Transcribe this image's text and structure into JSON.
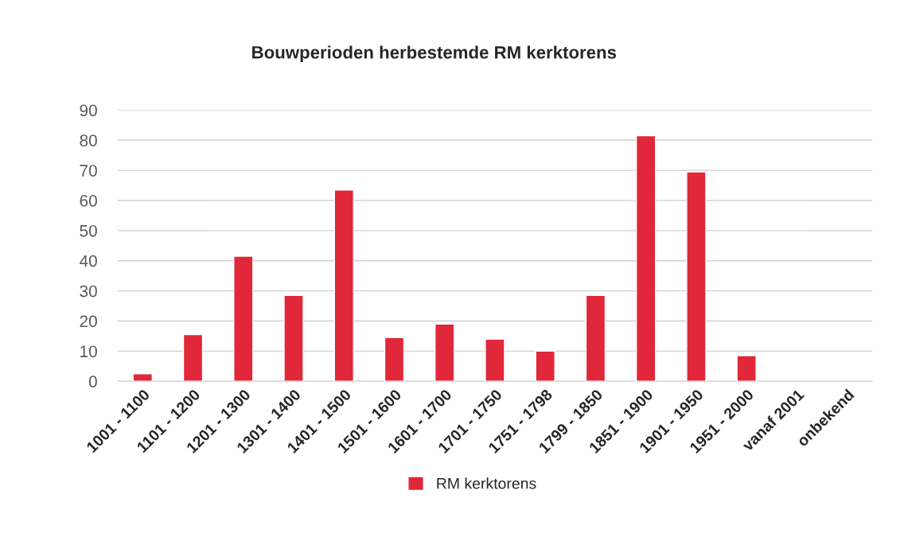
{
  "chart_data": {
    "type": "bar",
    "title": "Bouwperioden herbestemde RM kerktorens",
    "categories": [
      "1001 - 1100",
      "1101 - 1200",
      "1201 - 1300",
      "1301 - 1400",
      "1401 - 1500",
      "1501 - 1600",
      "1601 - 1700",
      "1701 - 1750",
      "1751 - 1798",
      "1799 - 1850",
      "1851 - 1900",
      "1901 - 1950",
      "1951 - 2000",
      "vanaf 2001",
      "onbekend"
    ],
    "series": [
      {
        "name": "RM kerktorens",
        "color": "#e0283a",
        "values": [
          2.5,
          15.5,
          41.5,
          28.5,
          63.5,
          14.5,
          19,
          14,
          10,
          28.5,
          81.5,
          69.5,
          8.5,
          null,
          null
        ]
      }
    ],
    "ylim": [
      0,
      90
    ],
    "yticks": [
      0,
      10,
      20,
      30,
      40,
      50,
      60,
      70,
      80,
      90
    ],
    "grid": "y",
    "legend": "bottom"
  }
}
